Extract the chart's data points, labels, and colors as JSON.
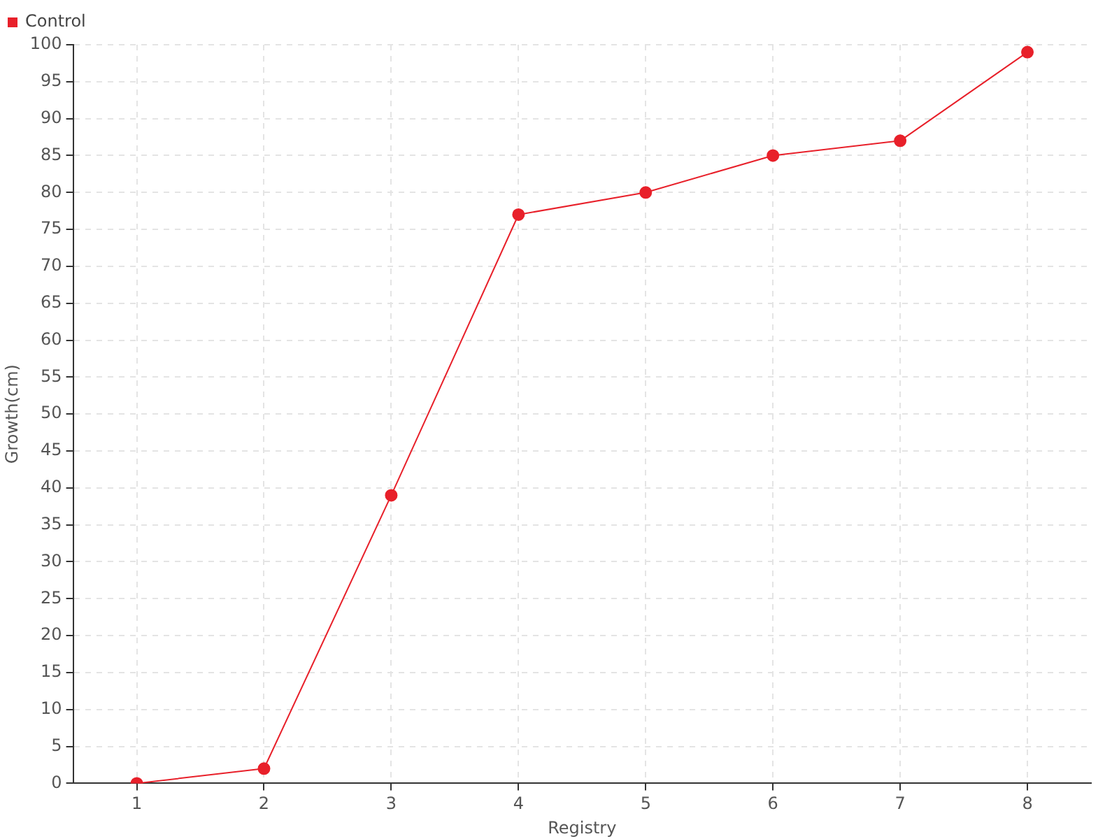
{
  "chart_data": {
    "type": "line",
    "xlabel": "Registry",
    "ylabel": "Growth(cm)",
    "categories": [
      "1",
      "2",
      "3",
      "4",
      "5",
      "6",
      "7",
      "8"
    ],
    "series": [
      {
        "name": "Control",
        "color": "#e8202a",
        "values": [
          0,
          2,
          39,
          77,
          80,
          85,
          87,
          99
        ]
      }
    ],
    "ylim": [
      0,
      100
    ],
    "yticks": [
      0,
      5,
      10,
      15,
      20,
      25,
      30,
      35,
      40,
      45,
      50,
      55,
      60,
      65,
      70,
      75,
      80,
      85,
      90,
      95,
      100
    ],
    "grid": true,
    "legend": "top left",
    "marker": "circle"
  }
}
